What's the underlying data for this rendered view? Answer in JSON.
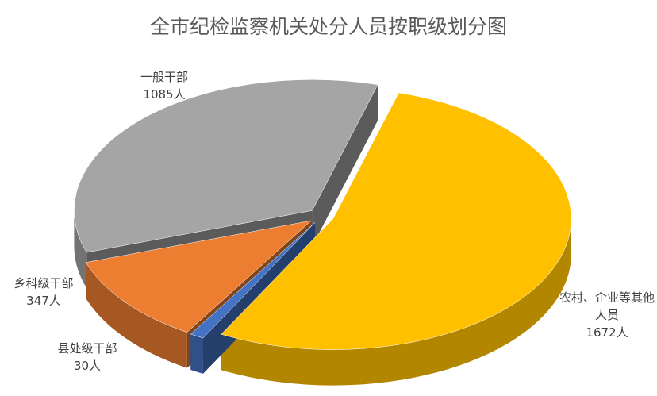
{
  "chart_data": {
    "type": "pie3d",
    "title": "全市纪检监察机关处分人员按职级划分图",
    "categories": [
      "农村、企业等其他人员",
      "县处级干部",
      "乡科级干部",
      "一般干部"
    ],
    "values": [
      1672,
      30,
      347,
      1085
    ],
    "value_labels": [
      "1672人",
      "30人",
      "347人",
      "1085人"
    ],
    "colors": [
      "#ffc000",
      "#4472c4",
      "#ed7d31",
      "#a5a5a5"
    ]
  }
}
